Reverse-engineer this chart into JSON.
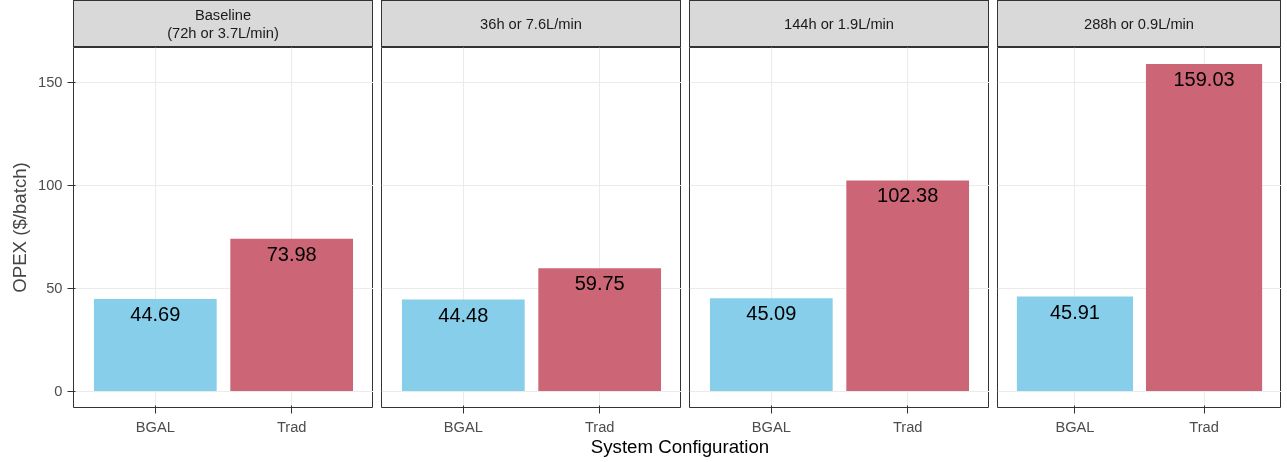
{
  "chart_data": [
    {
      "type": "bar",
      "title": "Baseline\n(72h or 3.7L/min)",
      "ylabel": "OPEX ($/batch)",
      "categories": [
        "BGAL",
        "Trad"
      ],
      "values": [
        44.69,
        73.98
      ],
      "colors": [
        "#87ceeb",
        "#cc6677"
      ],
      "ylim": [
        -8,
        167
      ],
      "yticks": [
        0,
        50,
        100,
        150
      ],
      "data_labels": true,
      "grid": true
    },
    {
      "type": "bar",
      "title": "36h or 7.6L/min",
      "xlabel": "System Configuration",
      "categories": [
        "BGAL",
        "Trad"
      ],
      "values": [
        44.48,
        59.75
      ],
      "colors": [
        "#87ceeb",
        "#cc6677"
      ],
      "ylim": [
        -8,
        167
      ],
      "yticks": [
        0,
        50,
        100,
        150
      ],
      "data_labels": true,
      "grid": true,
      "tick_labels": "x"
    },
    {
      "type": "bar",
      "title": "144h or 1.9L/min",
      "categories": [
        "BGAL",
        "Trad"
      ],
      "values": [
        45.09,
        102.38
      ],
      "colors": [
        "#87ceeb",
        "#cc6677"
      ],
      "ylim": [
        -8,
        167
      ],
      "yticks": [
        0,
        50,
        100,
        150
      ],
      "data_labels": true,
      "grid": true,
      "tick_labels": "x"
    },
    {
      "type": "bar",
      "title": "288h or 0.9L/min",
      "categories": [
        "BGAL",
        "Trad"
      ],
      "values": [
        45.91,
        159.03
      ],
      "colors": [
        "#87ceeb",
        "#cc6677"
      ],
      "ylim": [
        -8,
        167
      ],
      "yticks": [
        0,
        50,
        100,
        150
      ],
      "data_labels": true,
      "grid": true,
      "tick_labels": "x"
    }
  ]
}
